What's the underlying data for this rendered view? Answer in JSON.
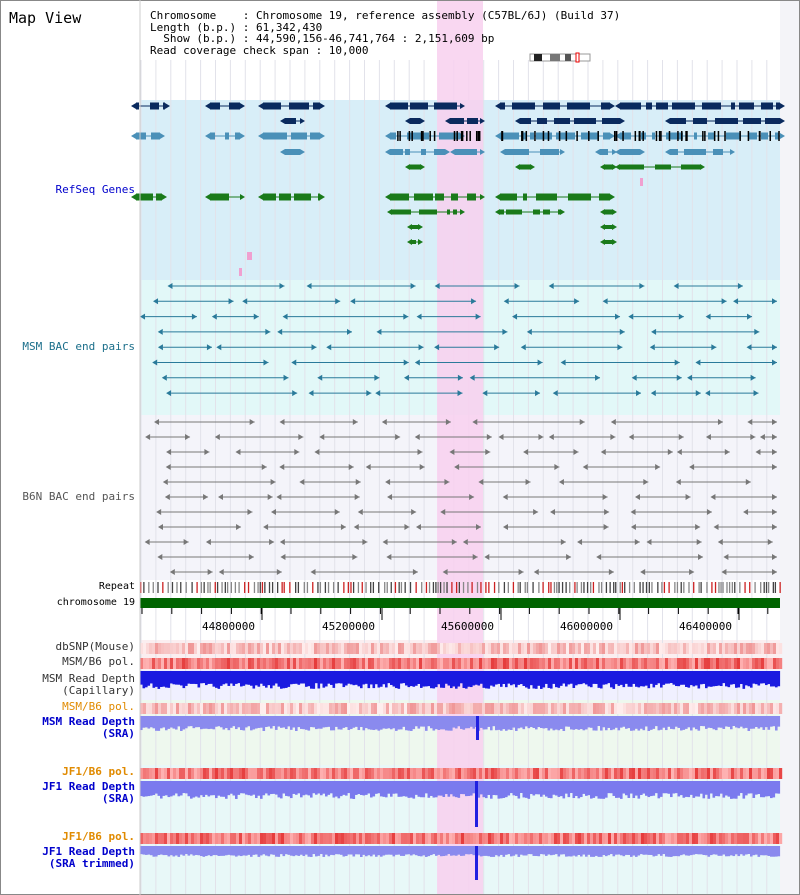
{
  "title": "Map View",
  "header": {
    "chromosome": "Chromosome    : Chromosome 19, reference assembly (C57BL/6J) (Build 37)",
    "length": "Length (b.p.) : 61,342,430",
    "show": "  Show (b.p.) : 44,590,156-46,741,764 : 2,151,609 bp",
    "coverage": "Read coverage check span : 10,000"
  },
  "tracks": {
    "refseq": "RefSeq Genes",
    "msm_bac": "MSM BAC end pairs",
    "b6n_bac": "B6N BAC end pairs",
    "repeat": "Repeat",
    "chromosome": "chromosome 19",
    "dbsnp": "dbSNP(Mouse)",
    "msm_b6_pol": "MSM/B6 pol.",
    "msm_depth_cap_1": "MSM Read Depth",
    "msm_depth_cap_2": "(Capillary)",
    "msm_b6_pol2": "MSM/B6 pol.",
    "msm_depth_sra_1": "MSM Read Depth",
    "msm_depth_sra_2": "(SRA)",
    "jf1_pol1": "JF1/B6 pol.",
    "jf1_depth_sra_1": "JF1 Read Depth",
    "jf1_depth_sra_2": "(SRA)",
    "jf1_pol2": "JF1/B6 pol.",
    "jf1_depth_trim_1": "JF1 Read Depth",
    "jf1_depth_trim_2": "(SRA trimmed)"
  },
  "axis_ticks": [
    "44800000",
    "45200000",
    "45600000",
    "46000000",
    "46400000"
  ],
  "colors": {
    "refseq_bg": "#d8eef8",
    "msm_bg": "#e2f8f8",
    "b6n_bg": "#f4f4fa",
    "highlight": "#f8d0ee",
    "chromosome_bar": "#006400",
    "gene_dark": "#0a2a5e",
    "gene_mid": "#4a90b8",
    "gene_green": "#1a7a1a",
    "msm_line": "#2a7a9a",
    "b6n_line": "#777777",
    "label_blue": "#0000cc",
    "label_teal": "#1a6e8a",
    "label_orange": "#e08a00"
  }
}
